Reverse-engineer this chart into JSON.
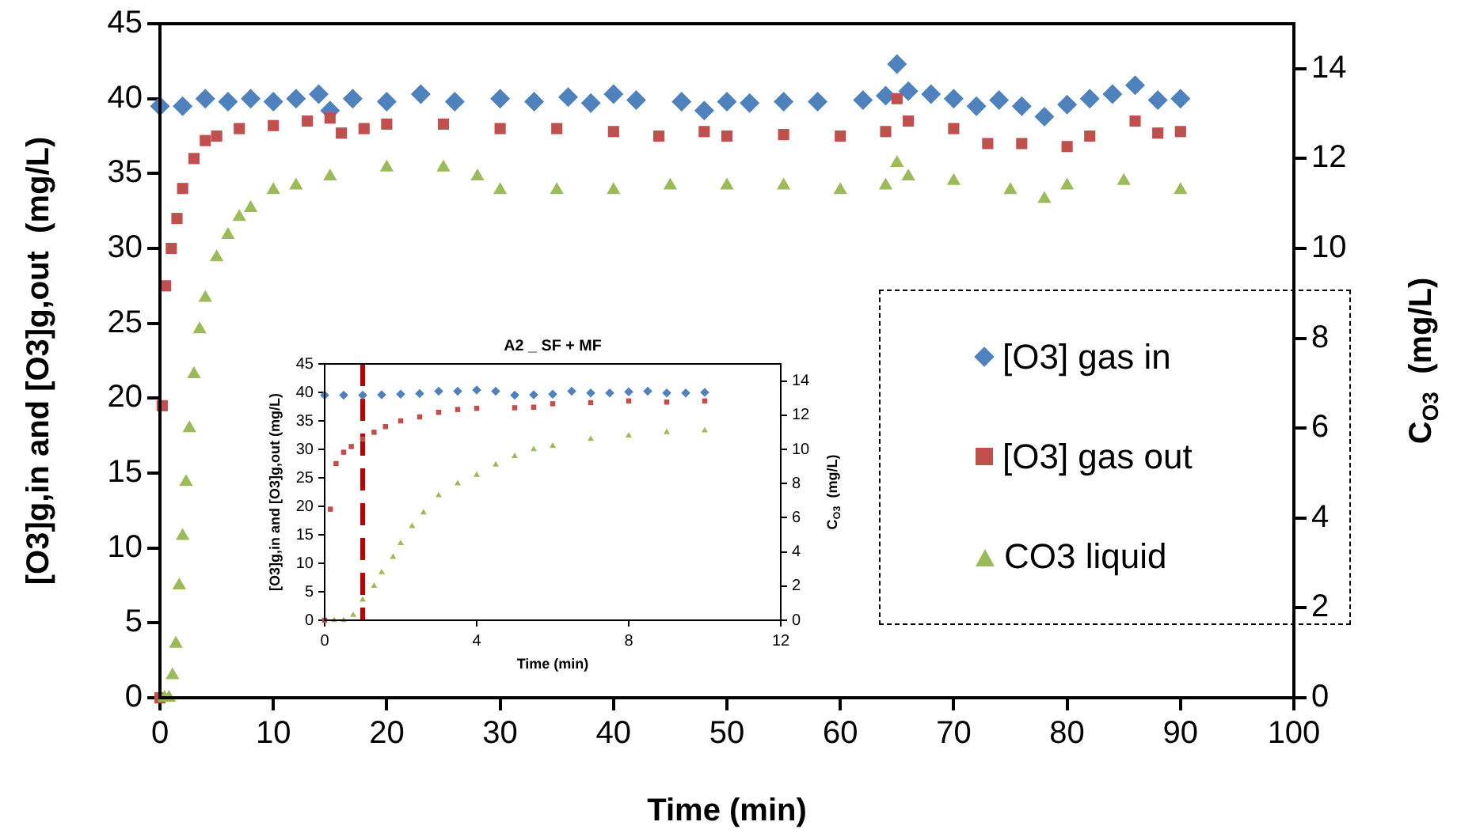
{
  "chart_data": [
    {
      "type": "scatter",
      "xlabel": "Time (min)",
      "ylabel": "[O3]g,in and [O3]g,out  (mg/L)",
      "y2label": "C$_{O3}$  (mg/L)",
      "xlim": [
        0,
        100
      ],
      "xticks": [
        0,
        10,
        20,
        30,
        40,
        50,
        60,
        70,
        80,
        90,
        100
      ],
      "ylim": [
        0,
        45
      ],
      "yticks": [
        0,
        5,
        10,
        15,
        20,
        25,
        30,
        35,
        40,
        45
      ],
      "y2lim": [
        0,
        15
      ],
      "y2ticks": [
        0,
        2,
        4,
        6,
        8,
        10,
        12,
        14
      ],
      "legend": "right",
      "series": [
        {
          "name": "[O3] gas in",
          "color": "#4f81bd",
          "marker": "diamond",
          "x": [
            0,
            2,
            4,
            6,
            8,
            10,
            12,
            14,
            15,
            17,
            20,
            23,
            26,
            30,
            33,
            36,
            38,
            40,
            42,
            46,
            48,
            50,
            52,
            55,
            58,
            62,
            64,
            65,
            66,
            68,
            70,
            72,
            74,
            76,
            78,
            80,
            82,
            84,
            86,
            88,
            90
          ],
          "values": [
            39.5,
            39.5,
            40,
            39.8,
            40,
            39.8,
            40,
            40.3,
            39.2,
            40,
            39.8,
            40.3,
            39.8,
            40,
            39.8,
            40.1,
            39.7,
            40.3,
            39.9,
            39.8,
            39.2,
            39.8,
            39.7,
            39.8,
            39.8,
            39.9,
            40.2,
            42.3,
            40.5,
            40.3,
            40,
            39.5,
            39.9,
            39.5,
            38.8,
            39.6,
            40,
            40.3,
            40.9,
            39.9,
            40
          ]
        },
        {
          "name": "[O3] gas out",
          "color": "#c0504d",
          "marker": "square",
          "x": [
            0,
            0.2,
            0.5,
            1,
            1.5,
            2,
            3,
            4,
            5,
            7,
            10,
            13,
            15,
            16,
            18,
            20,
            25,
            30,
            35,
            40,
            44,
            48,
            50,
            55,
            60,
            64,
            65,
            66,
            70,
            73,
            76,
            80,
            82,
            86,
            88,
            90
          ],
          "values": [
            0,
            19.5,
            27.5,
            30,
            32,
            34,
            36,
            37.2,
            37.5,
            38,
            38.2,
            38.5,
            38.7,
            37.7,
            38,
            38.3,
            38.3,
            38,
            38,
            37.8,
            37.5,
            37.8,
            37.5,
            37.6,
            37.5,
            37.8,
            40,
            38.5,
            38,
            37,
            37,
            36.8,
            37.5,
            38.5,
            37.7,
            37.8
          ]
        },
        {
          "name": "CO3  liquid",
          "color": "#9bbb59",
          "marker": "triangle",
          "axis": "y2",
          "x": [
            0.4,
            0.8,
            1.1,
            1.4,
            1.7,
            2,
            2.3,
            2.6,
            3,
            3.5,
            4,
            5,
            6,
            7,
            8,
            10,
            12,
            15,
            20,
            25,
            28,
            30,
            35,
            40,
            45,
            50,
            55,
            60,
            64,
            65,
            66,
            70,
            75,
            78,
            80,
            85,
            90
          ],
          "values": [
            0,
            0,
            0.5,
            1.2,
            2.5,
            3.6,
            4.8,
            6,
            7.2,
            8.2,
            8.9,
            9.8,
            10.3,
            10.7,
            10.9,
            11.3,
            11.4,
            11.6,
            11.8,
            11.8,
            11.6,
            11.3,
            11.3,
            11.3,
            11.4,
            11.4,
            11.4,
            11.3,
            11.4,
            11.9,
            11.6,
            11.5,
            11.3,
            11.1,
            11.4,
            11.5,
            11.3
          ]
        }
      ]
    },
    {
      "type": "scatter",
      "title": "A2 _ SF + MF",
      "xlabel": "Time (min)",
      "ylabel": "[O3]g,in and [O3]g,out (mg/L)",
      "y2label": "C$_{O3}$  (mg/L)",
      "xlim": [
        0,
        12
      ],
      "xticks": [
        0,
        4,
        8,
        12
      ],
      "ylim": [
        0,
        45
      ],
      "yticks": [
        0,
        5,
        10,
        15,
        20,
        25,
        30,
        35,
        40,
        45
      ],
      "y2lim": [
        0,
        15
      ],
      "y2ticks": [
        0,
        2,
        4,
        6,
        8,
        10,
        12,
        14
      ],
      "ref_lines": [
        {
          "axis": "x",
          "value": 1,
          "color": "#c00000",
          "line_style": "dashed"
        }
      ],
      "series": [
        {
          "color": "#4f81bd",
          "marker": "diamond",
          "x": [
            0,
            0.5,
            1,
            1.5,
            2,
            2.5,
            3,
            3.5,
            4,
            4.5,
            5,
            5.5,
            6,
            6.5,
            7,
            7.5,
            8,
            8.5,
            9,
            9.5,
            10
          ],
          "values": [
            39.5,
            39.5,
            39.5,
            39.6,
            39.7,
            39.8,
            40.2,
            40.2,
            40.4,
            40.2,
            39.5,
            39.6,
            39.7,
            40.2,
            39.9,
            39.9,
            40.1,
            40.2,
            39.9,
            39.9,
            40
          ]
        },
        {
          "color": "#c0504d",
          "marker": "square",
          "x": [
            0,
            0.15,
            0.3,
            0.5,
            0.7,
            1,
            1.3,
            1.6,
            2,
            2.5,
            3,
            3.5,
            4,
            5,
            5.5,
            6,
            7,
            8,
            9,
            10
          ],
          "values": [
            0,
            19.5,
            27.5,
            29.5,
            30.5,
            31.8,
            33,
            34,
            35,
            35.7,
            36.5,
            37,
            37.2,
            37.3,
            37.4,
            38,
            38.2,
            38.5,
            38.3,
            38.5
          ]
        },
        {
          "color": "#9bbb59",
          "marker": "triangle",
          "axis": "y2",
          "x": [
            0.25,
            0.5,
            0.75,
            1,
            1.3,
            1.5,
            1.8,
            2,
            2.3,
            2.6,
            3,
            3.5,
            4,
            4.5,
            5,
            5.5,
            6,
            7,
            8,
            9,
            10
          ],
          "values": [
            0,
            0,
            0.3,
            1.2,
            2,
            2.8,
            3.7,
            4.5,
            5.5,
            6.3,
            7.3,
            8,
            8.5,
            9.1,
            9.6,
            10,
            10.2,
            10.6,
            10.8,
            11,
            11.1
          ]
        }
      ]
    }
  ]
}
